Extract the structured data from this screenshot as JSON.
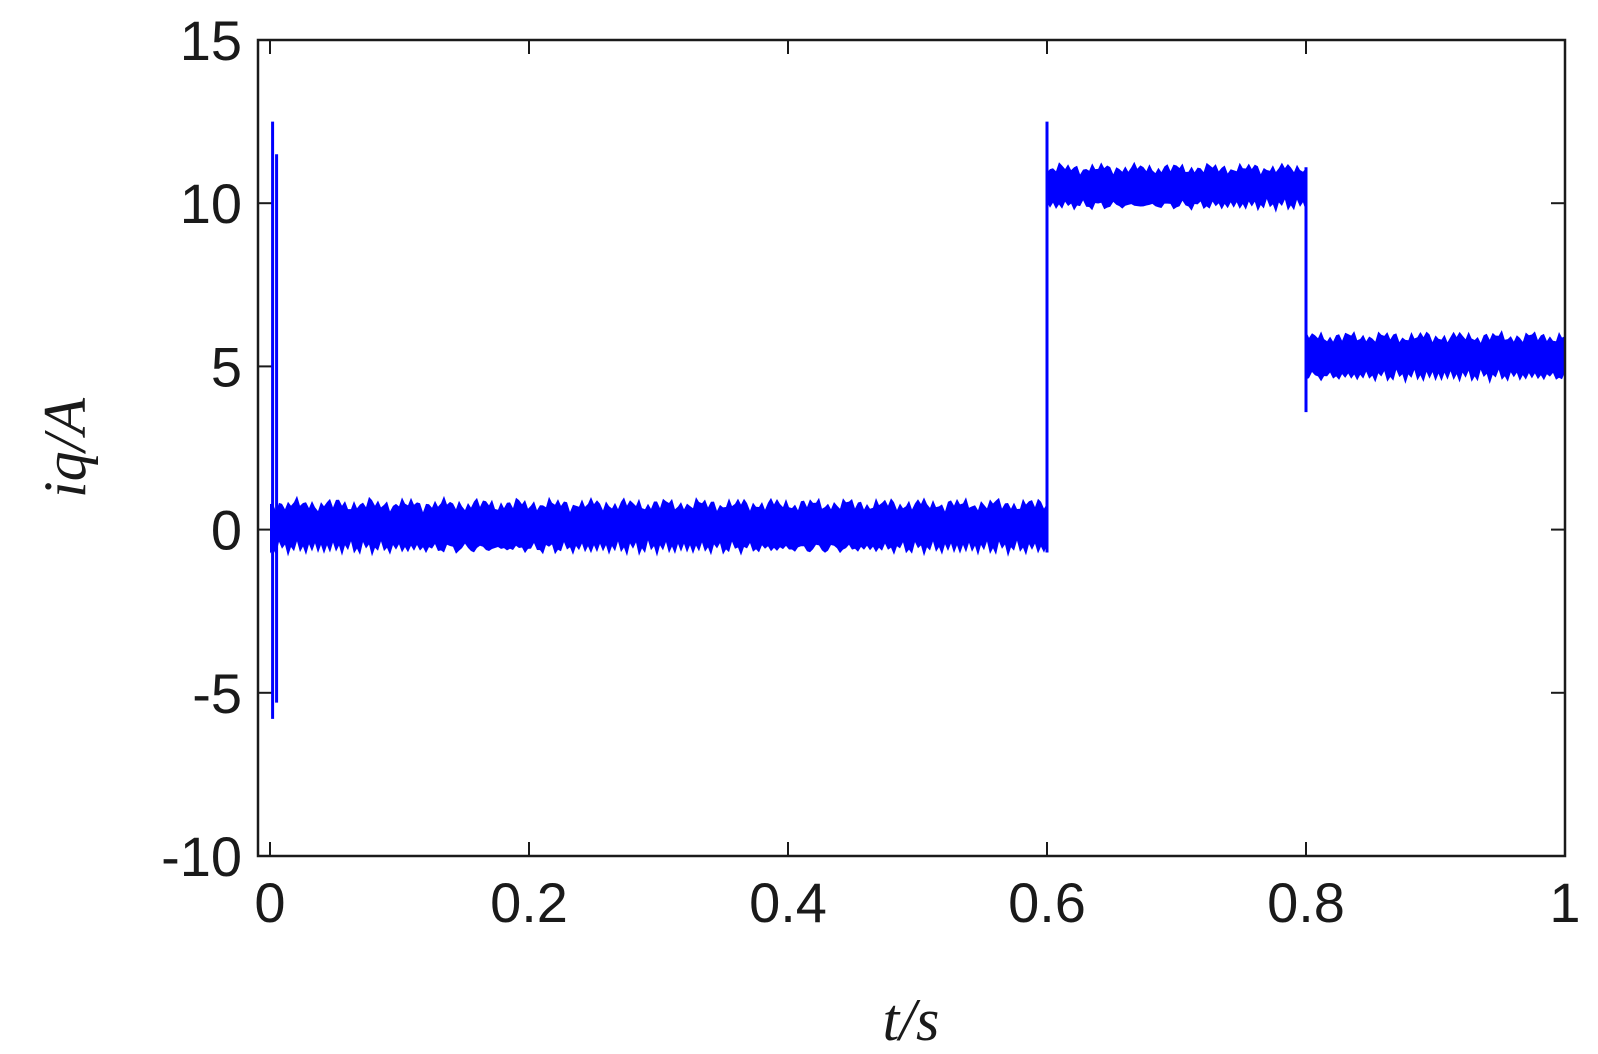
{
  "chart_data": {
    "type": "line",
    "xlabel": "t/s",
    "ylabel": "iq/A",
    "xlim": [
      0,
      1
    ],
    "ylim": [
      -10,
      15
    ],
    "xticks": [
      0,
      0.2,
      0.4,
      0.6,
      0.8,
      1
    ],
    "xtick_labels": [
      "0",
      "0.2",
      "0.4",
      "0.6",
      "0.8",
      "1"
    ],
    "yticks": [
      -10,
      -5,
      0,
      5,
      10,
      15
    ],
    "ytick_labels": [
      "-10",
      "-5",
      "0",
      "5",
      "10",
      "15"
    ],
    "grid": false,
    "legend": "none",
    "line_color": "#0000ff",
    "series": [
      {
        "segments": [
          {
            "t_start": 0.0,
            "t_end": 0.6,
            "mean": 0.1,
            "min": -0.8,
            "max": 1.1
          },
          {
            "t_start": 0.6,
            "t_end": 0.8,
            "mean": 10.5,
            "min": 9.8,
            "max": 11.4
          },
          {
            "t_start": 0.8,
            "t_end": 1.0,
            "mean": 5.3,
            "min": 4.5,
            "max": 6.2
          }
        ],
        "transients": [
          {
            "t": 0.002,
            "peak_max": 12.5,
            "peak_min": -5.8
          },
          {
            "t": 0.6,
            "peak_max": 12.5,
            "peak_min": -0.7
          },
          {
            "t": 0.8,
            "peak_max": 11.1,
            "peak_min": 3.6
          }
        ]
      }
    ]
  }
}
